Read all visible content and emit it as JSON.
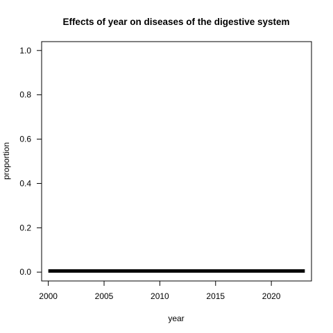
{
  "chart_data": {
    "type": "line",
    "title": "Effects of year on diseases of the digestive system",
    "xlabel": "year",
    "ylabel": "proportion",
    "xlim": [
      1999.4,
      2023.6
    ],
    "ylim": [
      -0.04,
      1.04
    ],
    "x_ticks": [
      2000,
      2005,
      2010,
      2015,
      2020
    ],
    "x_tick_labels": [
      "2000",
      "2005",
      "2010",
      "2015",
      "2020"
    ],
    "y_ticks": [
      0.0,
      0.2,
      0.4,
      0.6,
      0.8,
      1.0
    ],
    "y_tick_labels": [
      "0.0",
      "0.2",
      "0.4",
      "0.6",
      "0.8",
      "1.0"
    ],
    "grid": false,
    "series": [
      {
        "name": "effect",
        "x": [
          2000,
          2001,
          2002,
          2003,
          2004,
          2005,
          2006,
          2007,
          2008,
          2009,
          2010,
          2011,
          2012,
          2013,
          2014,
          2015,
          2016,
          2017,
          2018,
          2019,
          2020,
          2021,
          2022,
          2023
        ],
        "values": [
          0.005,
          0.005,
          0.005,
          0.005,
          0.005,
          0.005,
          0.005,
          0.005,
          0.005,
          0.005,
          0.005,
          0.005,
          0.005,
          0.005,
          0.005,
          0.005,
          0.005,
          0.005,
          0.005,
          0.005,
          0.005,
          0.005,
          0.005,
          0.005
        ]
      }
    ],
    "line_color": "#000000"
  }
}
